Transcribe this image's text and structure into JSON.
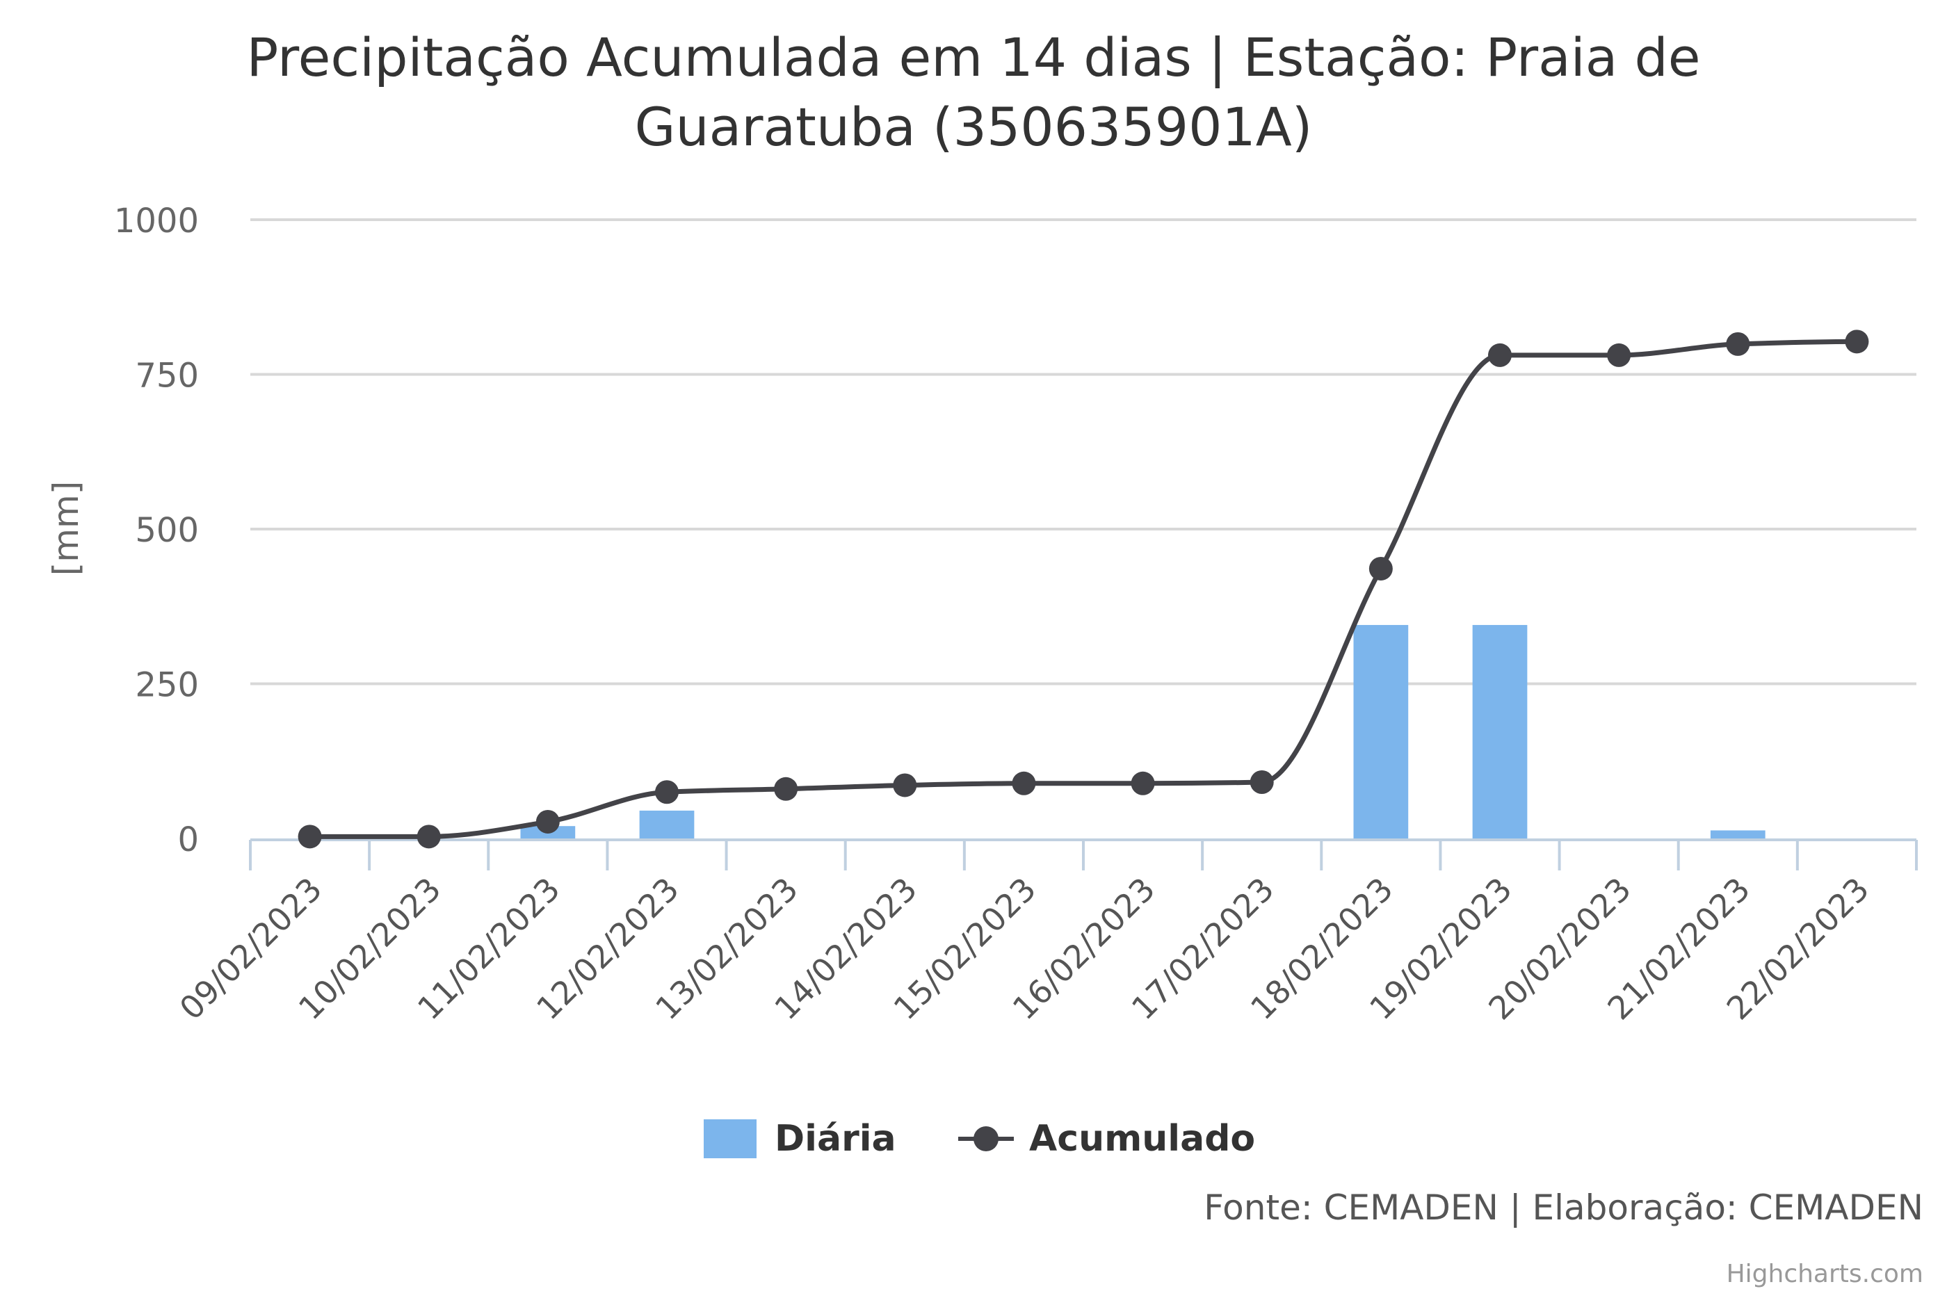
{
  "chart_data": {
    "type": "bar",
    "title": "Precipitação Acumulada em 14 dias | Estação: Praia de",
    "title_line2": "Guaratuba (350635901A)",
    "ylabel": "[mm]",
    "ylim": [
      0,
      1000
    ],
    "yticks": [
      "0",
      "250",
      "500",
      "750",
      "1000"
    ],
    "ytick_values": [
      0,
      250,
      500,
      750,
      1000
    ],
    "grid": true,
    "legend_placement": "bottom-center",
    "categories": [
      "09/02/2023",
      "10/02/2023",
      "11/02/2023",
      "12/02/2023",
      "13/02/2023",
      "14/02/2023",
      "15/02/2023",
      "16/02/2023",
      "17/02/2023",
      "18/02/2023",
      "19/02/2023",
      "20/02/2023",
      "21/02/2023",
      "22/02/2023"
    ],
    "series": [
      {
        "name": "Diária",
        "type": "bar",
        "color": "#7cb5ec",
        "values": [
          0,
          0,
          20,
          45,
          0,
          0,
          0,
          0,
          0,
          345,
          345,
          0,
          13,
          0
        ]
      },
      {
        "name": "Acumulado",
        "type": "line",
        "color": "#434348",
        "values": [
          3,
          3,
          27,
          75,
          80,
          86,
          89,
          89,
          91,
          436,
          781,
          781,
          799,
          803
        ]
      }
    ]
  },
  "source": "Fonte: CEMADEN | Elaboração: CEMADEN",
  "credits": "Highcharts.com"
}
